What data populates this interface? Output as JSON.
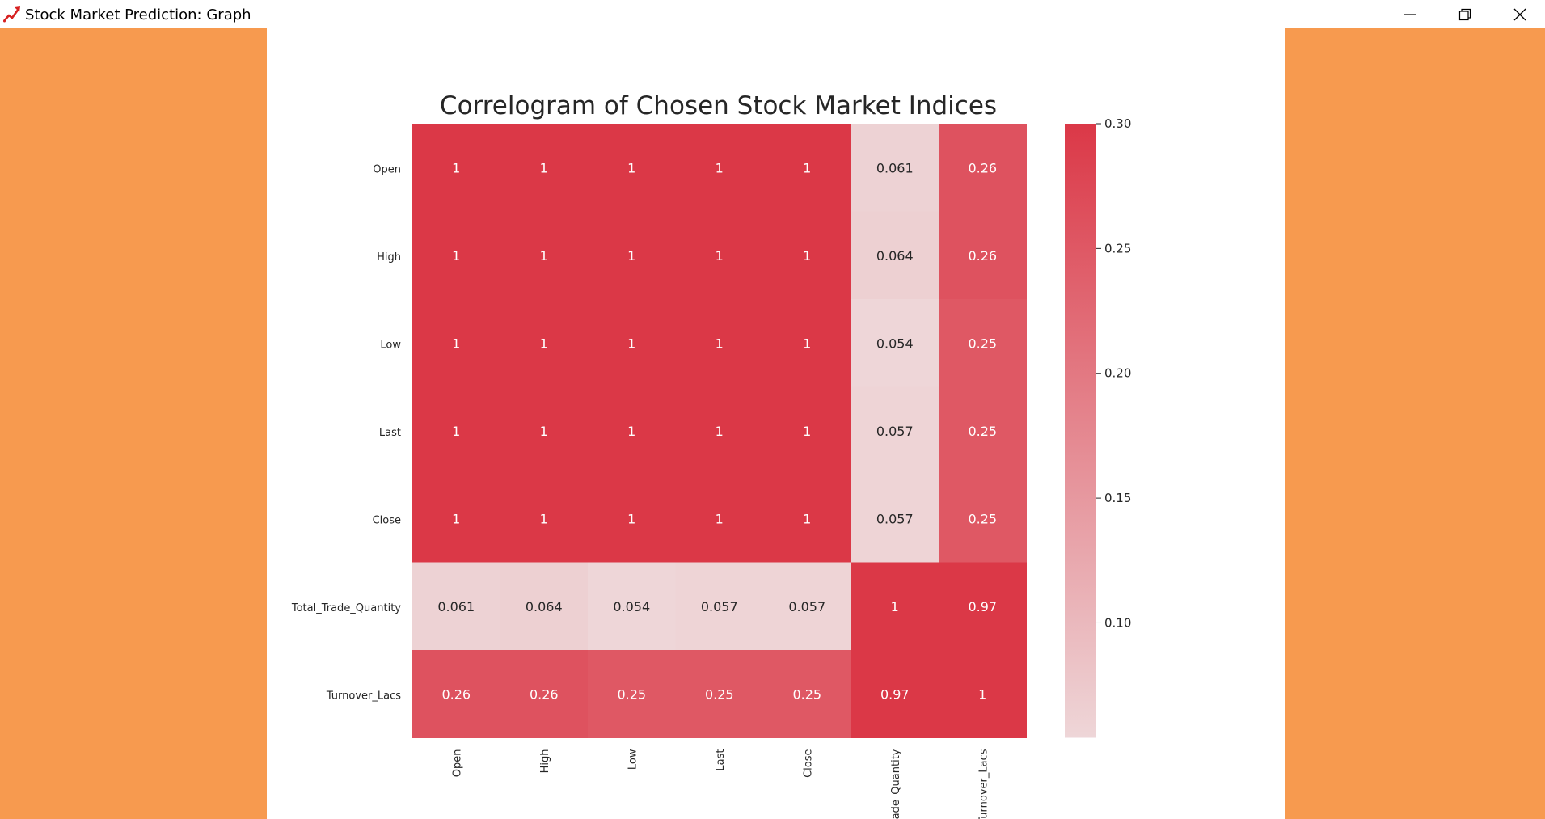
{
  "window": {
    "title": "Stock Market Prediction: Graph",
    "icon": "chart-trend-icon",
    "controls": [
      "minimize-icon",
      "restore-icon",
      "close-icon"
    ]
  },
  "colors": {
    "side_panel": "#f79a4f",
    "heat_high": "#db3847",
    "heat_low": "#eed6d8",
    "text_dark": "#262626",
    "text_light": "#ffffff"
  },
  "chart_data": {
    "type": "heatmap",
    "title": "Correlogram of Chosen Stock Market Indices",
    "row_labels": [
      "Open",
      "High",
      "Low",
      "Last",
      "Close",
      "Total_Trade_Quantity",
      "Turnover_Lacs"
    ],
    "col_labels": [
      "Open",
      "High",
      "Low",
      "Last",
      "Close",
      "Total_Trade_Quantity",
      "Turnover_Lacs"
    ],
    "values": [
      [
        1,
        1,
        1,
        1,
        1,
        0.061,
        0.26
      ],
      [
        1,
        1,
        1,
        1,
        1,
        0.064,
        0.26
      ],
      [
        1,
        1,
        1,
        1,
        1,
        0.054,
        0.25
      ],
      [
        1,
        1,
        1,
        1,
        1,
        0.057,
        0.25
      ],
      [
        1,
        1,
        1,
        1,
        1,
        0.057,
        0.25
      ],
      [
        0.061,
        0.064,
        0.054,
        0.057,
        0.057,
        1,
        0.97
      ],
      [
        0.26,
        0.26,
        0.25,
        0.25,
        0.25,
        0.97,
        1
      ]
    ],
    "colorbar": {
      "min": 0.054,
      "max": 0.3,
      "ticks": [
        0.1,
        0.15,
        0.2,
        0.25,
        0.3
      ],
      "tick_labels": [
        "0.10",
        "0.15",
        "0.20",
        "0.25",
        "0.30"
      ]
    }
  }
}
